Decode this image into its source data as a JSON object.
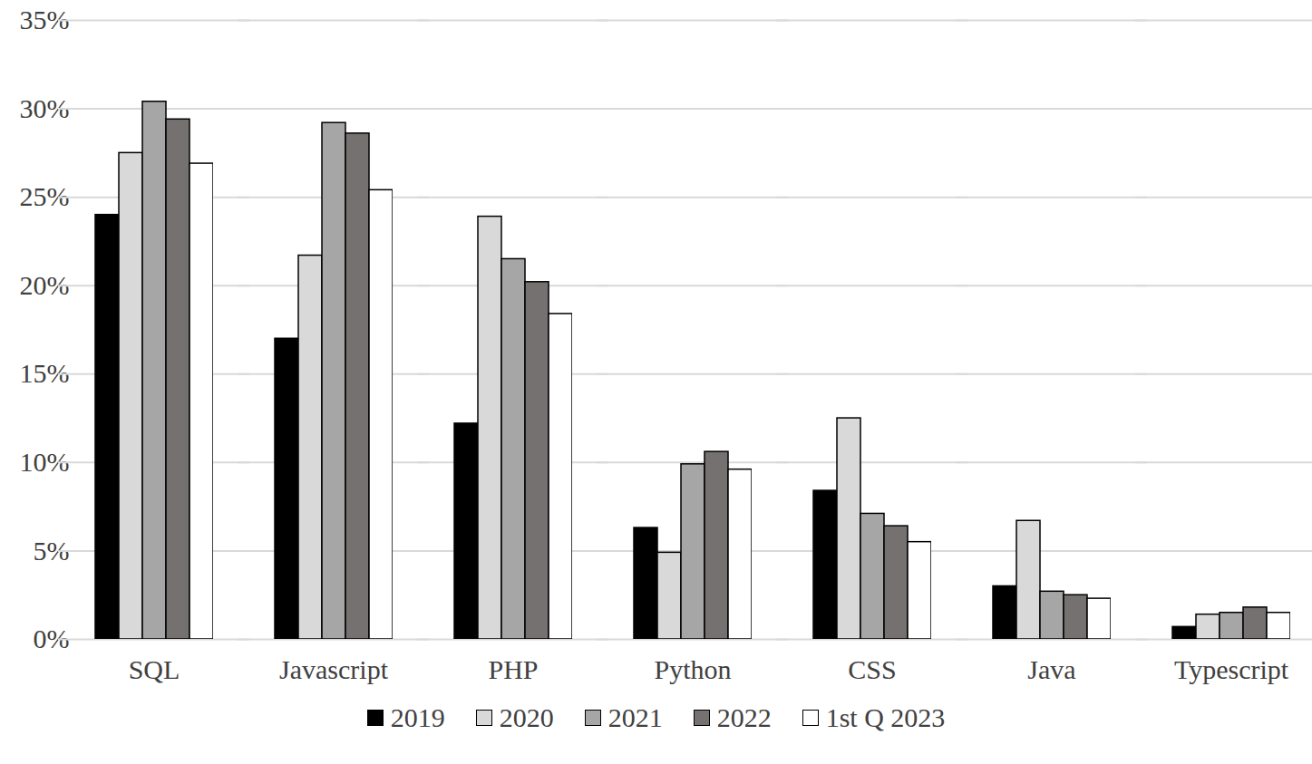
{
  "chart_data": {
    "type": "bar",
    "categories": [
      "SQL",
      "Javascript",
      "PHP",
      "Python",
      "CSS",
      "Java",
      "Typescript"
    ],
    "series": [
      {
        "name": "2019",
        "color": "#000000",
        "values": [
          24.0,
          17.0,
          12.2,
          6.3,
          8.4,
          3.0,
          0.7
        ]
      },
      {
        "name": "2020",
        "color": "#d9d9d9",
        "values": [
          27.5,
          21.7,
          23.9,
          4.9,
          12.5,
          6.7,
          1.4
        ]
      },
      {
        "name": "2021",
        "color": "#a6a6a6",
        "values": [
          30.4,
          29.2,
          21.5,
          9.9,
          7.1,
          2.7,
          1.5
        ]
      },
      {
        "name": "2022",
        "color": "#767171",
        "values": [
          29.4,
          28.6,
          20.2,
          10.6,
          6.4,
          2.5,
          1.8
        ]
      },
      {
        "name": "1st Q 2023",
        "color": "#ffffff",
        "values": [
          26.9,
          25.4,
          18.4,
          9.6,
          5.5,
          2.3,
          1.5
        ]
      }
    ],
    "ylim": [
      0,
      35
    ],
    "yticks": [
      {
        "value": 0,
        "label": "0%"
      },
      {
        "value": 5,
        "label": "5%"
      },
      {
        "value": 10,
        "label": "10%"
      },
      {
        "value": 15,
        "label": "15%"
      },
      {
        "value": 20,
        "label": "20%"
      },
      {
        "value": 25,
        "label": "25%"
      },
      {
        "value": 30,
        "label": "30%"
      },
      {
        "value": 35,
        "label": "35%"
      }
    ],
    "grid": true,
    "legend": "bottom"
  }
}
